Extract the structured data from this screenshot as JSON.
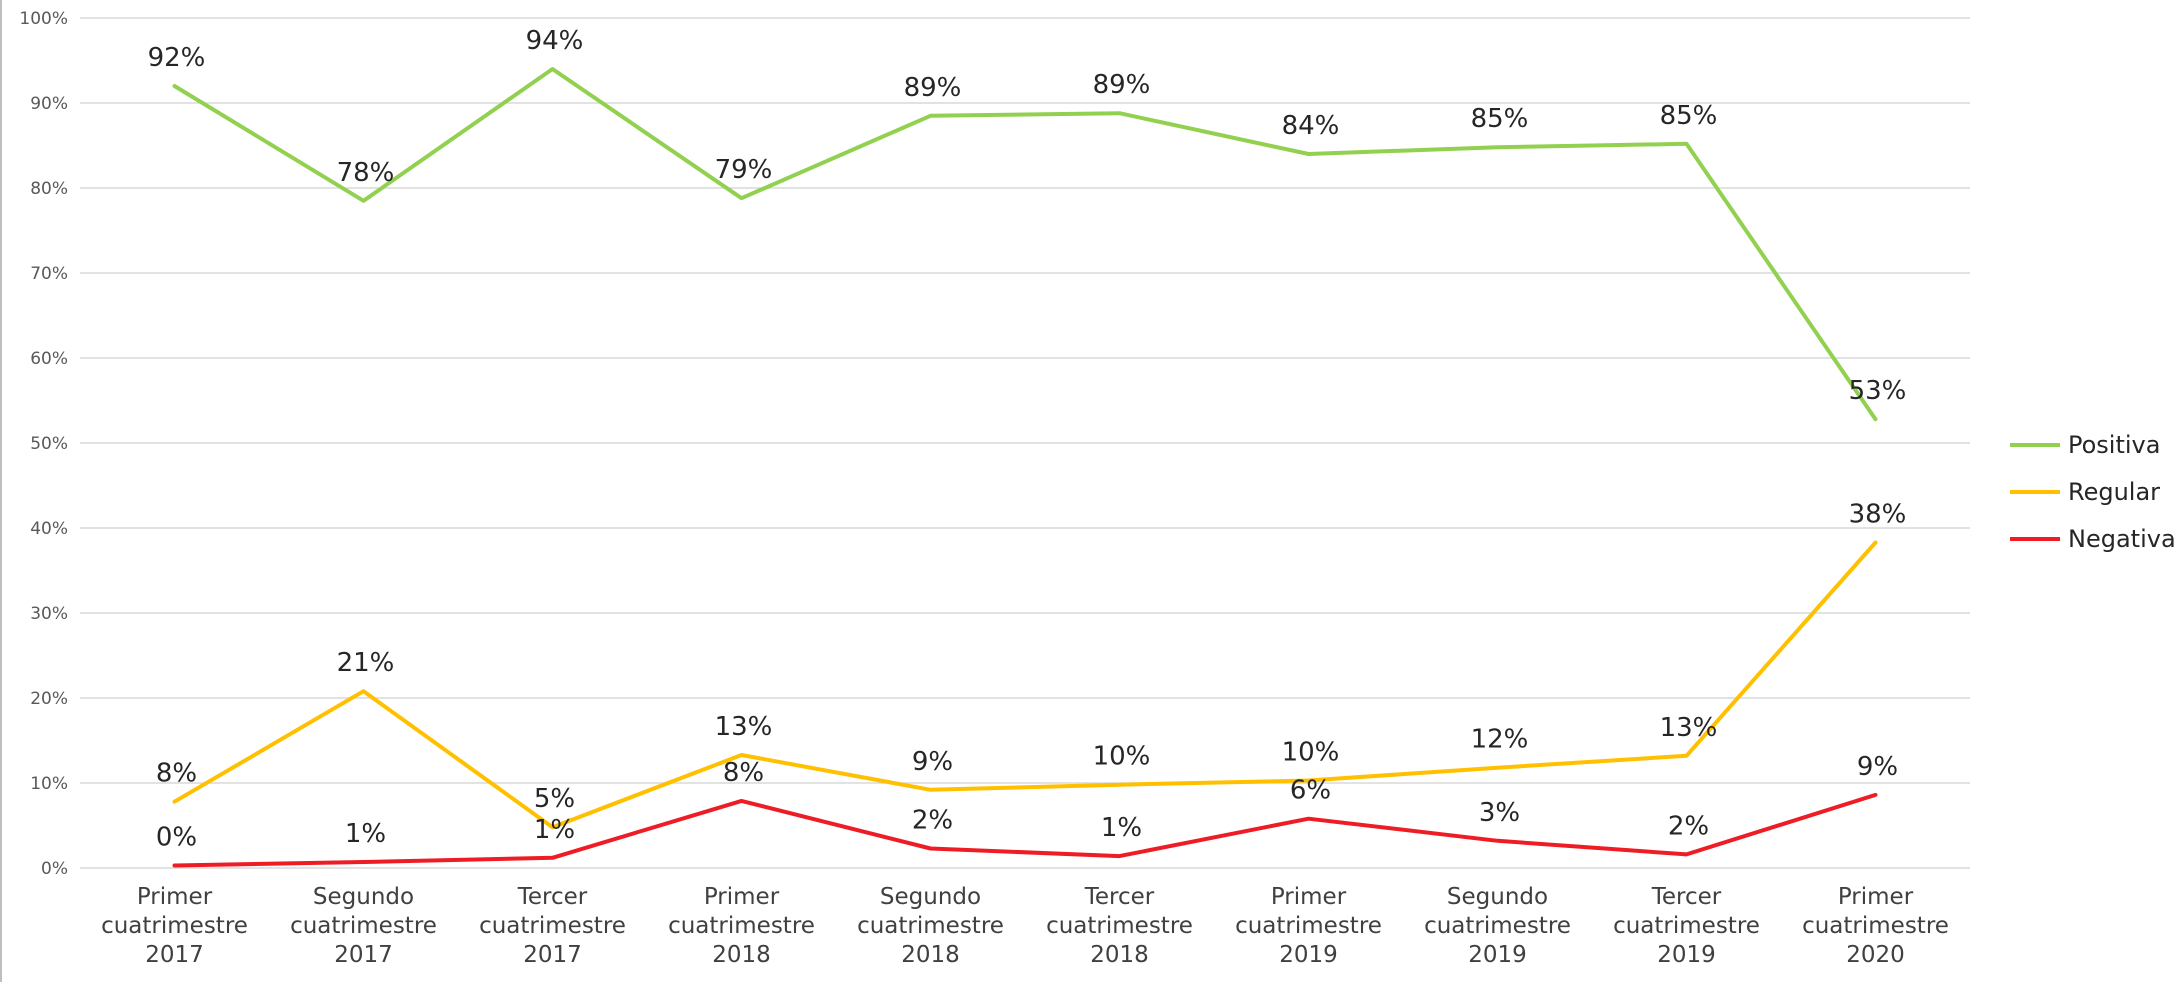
{
  "chart_data": {
    "type": "line",
    "categories": [
      [
        "Primer",
        "cuatrimestre",
        "2017"
      ],
      [
        "Segundo",
        "cuatrimestre",
        "2017"
      ],
      [
        "Tercer",
        "cuatrimestre",
        "2017"
      ],
      [
        "Primer",
        "cuatrimestre",
        "2018"
      ],
      [
        "Segundo",
        "cuatrimestre",
        "2018"
      ],
      [
        "Tercer",
        "cuatrimestre",
        "2018"
      ],
      [
        "Primer",
        "cuatrimestre",
        "2019"
      ],
      [
        "Segundo",
        "cuatrimestre",
        "2019"
      ],
      [
        "Tercer",
        "cuatrimestre",
        "2019"
      ],
      [
        "Primer",
        "cuatrimestre",
        "2020"
      ]
    ],
    "ylim": [
      0,
      100
    ],
    "yticks": [
      "0%",
      "10%",
      "20%",
      "30%",
      "40%",
      "50%",
      "60%",
      "70%",
      "80%",
      "90%",
      "100%"
    ],
    "grid": true,
    "legend_position": "right",
    "series": [
      {
        "name": "Positiva",
        "color": "#92D050",
        "values": [
          92.0,
          78.5,
          94.0,
          78.8,
          88.5,
          88.8,
          84.0,
          84.8,
          85.2,
          52.8
        ],
        "labels": [
          "92%",
          "78%",
          "94%",
          "79%",
          "89%",
          "89%",
          "84%",
          "85%",
          "85%",
          "53%"
        ]
      },
      {
        "name": "Regular",
        "color": "#FFC000",
        "values": [
          7.8,
          20.8,
          4.8,
          13.3,
          9.2,
          9.8,
          10.3,
          11.8,
          13.2,
          38.3
        ],
        "labels": [
          "8%",
          "21%",
          "5%",
          "13%",
          "9%",
          "10%",
          "10%",
          "12%",
          "13%",
          "38%"
        ]
      },
      {
        "name": "Negativa",
        "color": "#EE1C25",
        "values": [
          0.3,
          0.7,
          1.2,
          7.9,
          2.3,
          1.4,
          5.8,
          3.2,
          1.6,
          8.6
        ],
        "labels": [
          "0%",
          "1%",
          "1%",
          "8%",
          "2%",
          "1%",
          "6%",
          "3%",
          "2%",
          "9%"
        ]
      }
    ]
  }
}
